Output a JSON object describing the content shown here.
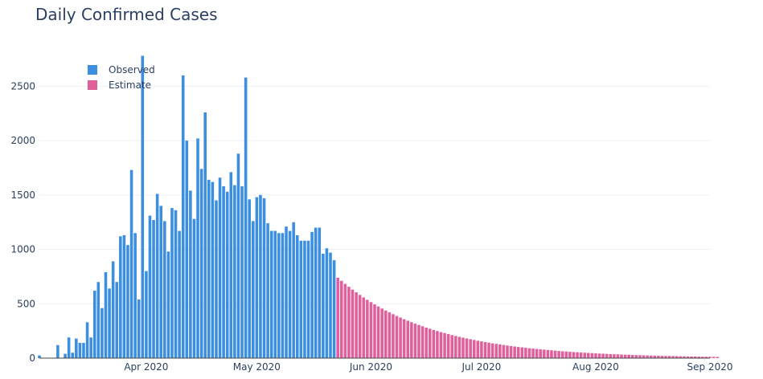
{
  "chart_data": {
    "type": "bar",
    "title": "Daily Confirmed Cases",
    "xlabel": "",
    "ylabel": "",
    "ylim": [
      0,
      2850
    ],
    "xlim": [
      "2020-03-03",
      "2020-09-01"
    ],
    "grid": true,
    "legend_position": "top-left",
    "y_ticks": [
      0,
      500,
      1000,
      1500,
      2000,
      2500
    ],
    "x_ticks": [
      {
        "date": "2020-04-01",
        "label": "Apr 2020"
      },
      {
        "date": "2020-05-01",
        "label": "May 2020"
      },
      {
        "date": "2020-06-01",
        "label": "Jun 2020"
      },
      {
        "date": "2020-07-01",
        "label": "Jul 2020"
      },
      {
        "date": "2020-08-01",
        "label": "Aug 2020"
      },
      {
        "date": "2020-09-01",
        "label": "Sep 2020"
      }
    ],
    "series": [
      {
        "name": "Observed",
        "color": "#3c8fe0",
        "start_date": "2020-03-03",
        "values": [
          25,
          0,
          0,
          0,
          0,
          120,
          0,
          40,
          190,
          50,
          180,
          140,
          140,
          330,
          190,
          620,
          700,
          460,
          790,
          640,
          890,
          700,
          1120,
          1130,
          1040,
          1730,
          1150,
          540,
          2780,
          800,
          1310,
          1270,
          1510,
          1400,
          1260,
          980,
          1380,
          1360,
          1170,
          2600,
          2000,
          1540,
          1280,
          2020,
          1740,
          2260,
          1640,
          1620,
          1450,
          1660,
          1580,
          1530,
          1710,
          1590,
          1880,
          1580,
          2580,
          1460,
          1260,
          1480,
          1500,
          1470,
          1240,
          1170,
          1170,
          1150,
          1150,
          1210,
          1170,
          1250,
          1130,
          1080,
          1080,
          1080,
          1160,
          1200,
          1200,
          960,
          1010,
          970,
          900
        ]
      },
      {
        "name": "Estimate",
        "color": "#e0609c",
        "start_date": "2020-05-23",
        "values": [
          740,
          711,
          683,
          656,
          630,
          605,
          581,
          558,
          536,
          515,
          494,
          475,
          456,
          438,
          421,
          404,
          388,
          373,
          358,
          344,
          330,
          317,
          305,
          293,
          281,
          270,
          259,
          249,
          239,
          230,
          221,
          212,
          204,
          196,
          188,
          181,
          174,
          167,
          160,
          154,
          148,
          142,
          136,
          131,
          126,
          121,
          116,
          111,
          107,
          103,
          99,
          95,
          91,
          88,
          84,
          81,
          78,
          75,
          72,
          69,
          66,
          63,
          61,
          58,
          56,
          54,
          52,
          50,
          48,
          46,
          44,
          42,
          41,
          39,
          37,
          36,
          35,
          33,
          32,
          31,
          29,
          28,
          27,
          26,
          25,
          24,
          23,
          22,
          21,
          20,
          20,
          19,
          18,
          17,
          17,
          16,
          15,
          15,
          14,
          13,
          13,
          12,
          12,
          11
        ]
      }
    ]
  }
}
